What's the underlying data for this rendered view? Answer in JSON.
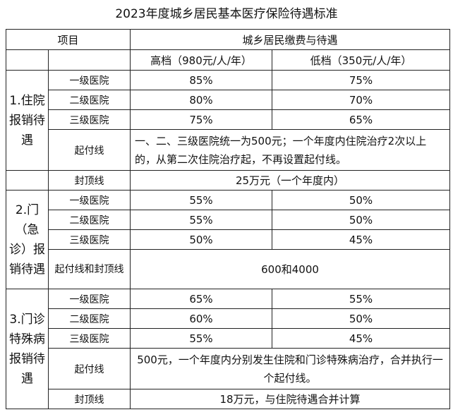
{
  "title": "2023年度城乡居民基本医疗保险待遇标准",
  "header": {
    "item": "项目",
    "group": "城乡居民缴费与待遇",
    "high": "高档（980元/人/年）",
    "low": "低档（350元/人/年）"
  },
  "sections": [
    {
      "name": "1.住院报销待遇",
      "rows": [
        {
          "label": "一级医院",
          "high": "85%",
          "low": "75%"
        },
        {
          "label": "二级医院",
          "high": "80%",
          "low": "70%"
        },
        {
          "label": "三级医院",
          "high": "75%",
          "low": "65%"
        },
        {
          "label": "起付线",
          "merged": "一、二、三级医院统一为500元；一个年度内住院治疗2次以上的，从第二次住院治疗起，不再设置起付线。"
        },
        {
          "label": "封顶线",
          "merged": "25万元（一个年度内）"
        }
      ]
    },
    {
      "name": "2.门（急诊）报销待遇",
      "rows": [
        {
          "label": "一级医院",
          "high": "55%",
          "low": "50%"
        },
        {
          "label": "二级医院",
          "high": "55%",
          "low": "50%"
        },
        {
          "label": "三级医院",
          "high": "50%",
          "low": "45%"
        },
        {
          "label": "起付线和封顶线",
          "merged": "600和4000"
        }
      ]
    },
    {
      "name": "3.门诊特殊病报销待遇",
      "rows": [
        {
          "label": "一级医院",
          "high": "65%",
          "low": "55%"
        },
        {
          "label": "二级医院",
          "high": "60%",
          "low": "50%"
        },
        {
          "label": "三级医院",
          "high": "55%",
          "low": "45%"
        },
        {
          "label": "起付线",
          "merged": "500元，一个年度内分别发生住院和门诊特殊病治疗，合并执行一个起付线。"
        },
        {
          "label": "封顶线",
          "merged": "18万元，与住院待遇合并计算"
        }
      ]
    }
  ]
}
